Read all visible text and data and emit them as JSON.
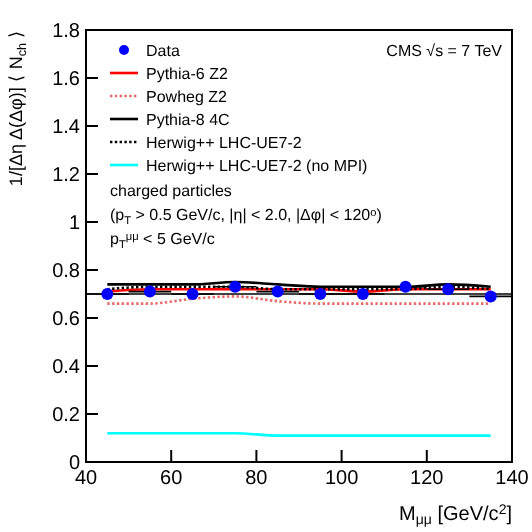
{
  "chart_data": {
    "type": "line",
    "xlabel": "M$_{μμ}$ [GeV/c$^{2}$]",
    "ylabel": "1/[Δη Δ(Δφ)] ⟨ N$_{ch}$ ⟩",
    "x": [
      45,
      55,
      65,
      75,
      85,
      95,
      105,
      115,
      125,
      135
    ],
    "xlim": [
      40,
      140
    ],
    "xticks": [
      40,
      60,
      80,
      100,
      120,
      140
    ],
    "ylim": [
      0,
      1.8
    ],
    "yticks": [
      0,
      0.2,
      0.4,
      0.6,
      0.8,
      1,
      1.2,
      1.4,
      1.6,
      1.8
    ],
    "legend": "top left",
    "grid": false,
    "ref_lines": [
      {
        "axis": "y",
        "value": 0.7,
        "color": "#000000",
        "line_style": "solid"
      }
    ],
    "annotations": [
      "CMS  √s = 7 TeV",
      "charged particles",
      "(p$_{T}$ > 0.5 GeV/c, |η| < 2.0, |Δφ| < 120$^{o}$)",
      "p$_{T}$$^{μμ}$ < 5 GeV/c"
    ],
    "series": [
      {
        "name": "Data",
        "type": "scatter",
        "color": "#0000ff",
        "marker": "circle",
        "values": [
          0.7,
          0.71,
          0.7,
          0.73,
          0.71,
          0.7,
          0.7,
          0.73,
          0.72,
          0.69
        ],
        "xerrors": [
          5,
          5,
          5,
          5,
          5,
          5,
          5,
          5,
          5,
          5
        ]
      },
      {
        "name": "Pythia-6 Z2",
        "color": "#ff0000",
        "line_style": "solid",
        "values": [
          0.71,
          0.72,
          0.72,
          0.72,
          0.72,
          0.72,
          0.71,
          0.72,
          0.72,
          0.72
        ]
      },
      {
        "name": "Powheg Z2",
        "color": "#e86a6a",
        "line_style": "dotted",
        "values": [
          0.66,
          0.66,
          0.68,
          0.69,
          0.67,
          0.66,
          0.66,
          0.66,
          0.66,
          0.66
        ]
      },
      {
        "name": "Pythia-8 4C",
        "color": "#000000",
        "line_style": "solid",
        "values": [
          0.74,
          0.74,
          0.74,
          0.75,
          0.74,
          0.73,
          0.73,
          0.73,
          0.74,
          0.73
        ]
      },
      {
        "name": "Herwig++ LHC-UE7-2",
        "color": "#000000",
        "line_style": "dotted",
        "values": [
          0.72,
          0.73,
          0.73,
          0.73,
          0.72,
          0.72,
          0.72,
          0.72,
          0.73,
          0.72
        ]
      },
      {
        "name": "Herwig++ LHC-UE7-2 (no MPI)",
        "color": "#00ffff",
        "line_style": "solid",
        "values": [
          0.12,
          0.12,
          0.12,
          0.12,
          0.11,
          0.11,
          0.11,
          0.11,
          0.11,
          0.11
        ]
      }
    ]
  }
}
